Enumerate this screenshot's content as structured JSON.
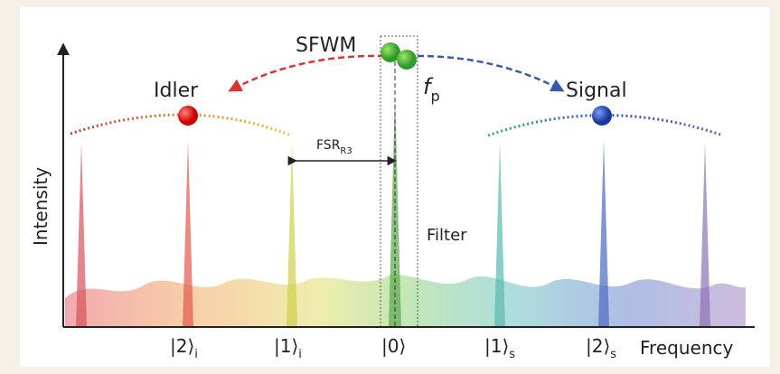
{
  "process": "SFWM",
  "pump": {
    "symbol": "f",
    "subscript": "p"
  },
  "idler": "Idler",
  "signal": "Signal",
  "fsr": {
    "label": "FSR",
    "subscript": "R3"
  },
  "filter": "Filter",
  "y_axis": "Intensity",
  "x_axis": "Frequency",
  "states": [
    {
      "ket": "|2⟩",
      "subscript": "i"
    },
    {
      "ket": "|1⟩",
      "subscript": "i"
    },
    {
      "ket": "|0⟩"
    },
    {
      "ket": "|1⟩",
      "subscript": "s"
    },
    {
      "ket": "|2⟩",
      "subscript": "s"
    }
  ]
}
